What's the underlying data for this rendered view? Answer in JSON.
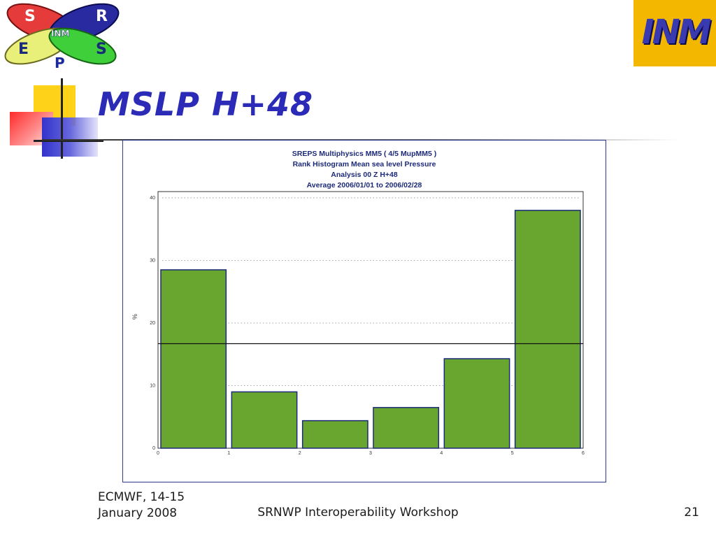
{
  "slide": {
    "title": "MSLP H+48",
    "page_number": "21"
  },
  "logos": {
    "srep_letters": [
      "S",
      "R",
      "E",
      "S",
      "P"
    ],
    "srep_center": "INM",
    "inm_text": "INM"
  },
  "footer": {
    "left_line1": "ECMWF, 14-15",
    "left_line2": "January 2008",
    "center": "SRNWP Interoperability Workshop"
  },
  "colors": {
    "title": "#2b2bb8",
    "bar_fill": "#69a630",
    "bar_stroke": "#1c2a7a",
    "chart_title": "#1c2a7a",
    "inm_bg": "#f3b700"
  },
  "chart_data": {
    "type": "bar",
    "title_lines": [
      "SREPS Multiphysics MM5   ( 4/5 MupMM5 )",
      "Rank Histogram  Mean sea level Pressure",
      "Analysis 00 Z  H+48",
      "Average 2006/01/01 to 2006/02/28"
    ],
    "ylabel": "%",
    "xlabel": "",
    "x_ticks": [
      "0",
      "1",
      "2",
      "3",
      "4",
      "5",
      "6"
    ],
    "y_ticks": [
      "0",
      "10",
      "20",
      "30",
      "40"
    ],
    "ylim": [
      0,
      41
    ],
    "xlim": [
      0,
      6
    ],
    "values": [
      28.5,
      9.0,
      4.4,
      6.5,
      14.3,
      38.0
    ],
    "reference_line": 16.7,
    "grid": "horizontal dotted"
  }
}
